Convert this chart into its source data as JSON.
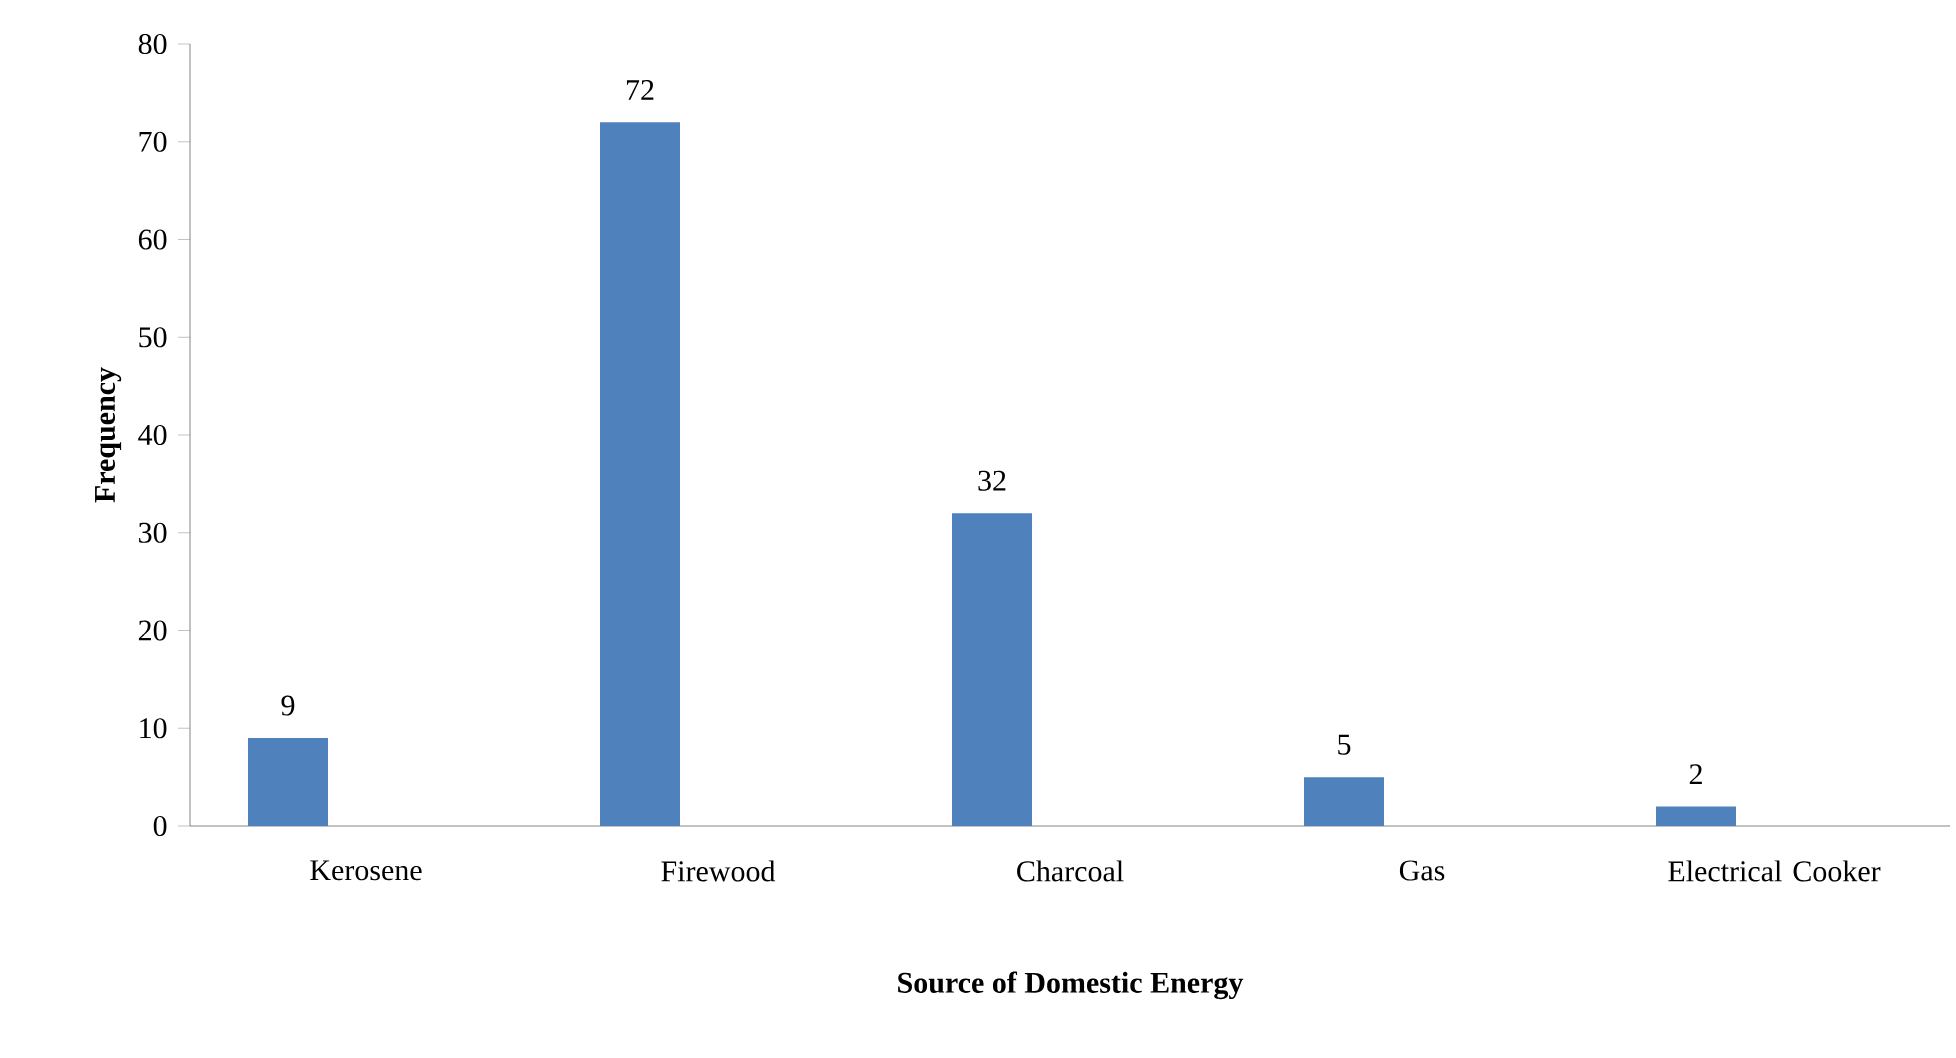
{
  "chart_data": {
    "type": "bar",
    "xlabel": "Source of Domestic Energy",
    "ylabel": "Frequency",
    "categories": [
      "Kerosene",
      "Firewood",
      "Charcoal",
      "Gas",
      "Electrical Cooker"
    ],
    "values": [
      9,
      72,
      32,
      5,
      2
    ],
    "color": "#4f81bd",
    "ylim": [
      0,
      80
    ],
    "yticks": [
      0,
      10,
      20,
      30,
      40,
      50,
      60,
      70,
      80
    ],
    "data_labels": true
  }
}
